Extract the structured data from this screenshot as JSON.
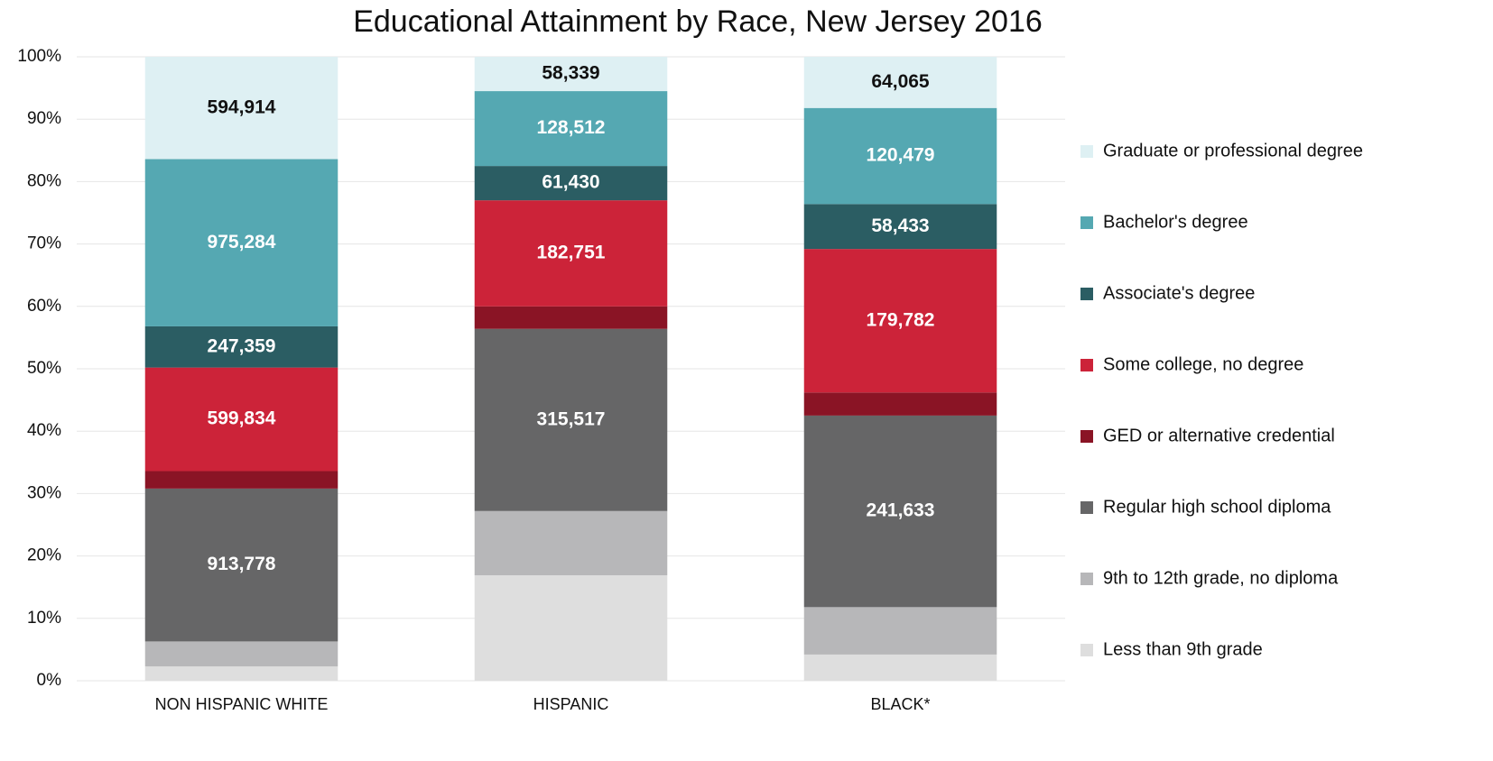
{
  "chart_data": {
    "type": "stacked_bar_percent",
    "title": "Educational Attainment by Race, New Jersey 2016",
    "categories": [
      "NON HISPANIC WHITE",
      "HISPANIC",
      "BLACK*"
    ],
    "ylim": [
      0,
      100
    ],
    "yticks": [
      {
        "value": 0,
        "label": "0%"
      },
      {
        "value": 10,
        "label": "10%"
      },
      {
        "value": 20,
        "label": "20%"
      },
      {
        "value": 30,
        "label": "30%"
      },
      {
        "value": 40,
        "label": "40%"
      },
      {
        "value": 50,
        "label": "50%"
      },
      {
        "value": 60,
        "label": "60%"
      },
      {
        "value": 70,
        "label": "70%"
      },
      {
        "value": 80,
        "label": "80%"
      },
      {
        "value": 90,
        "label": "90%"
      },
      {
        "value": 100,
        "label": "100%"
      }
    ],
    "grid": true,
    "legend": "right",
    "series": [
      {
        "name": "Less than 9th grade",
        "color": "#dedede",
        "label_color": "#ffffff",
        "values": [
          2.3,
          16.9,
          4.2
        ],
        "counts": [
          null,
          null,
          null
        ]
      },
      {
        "name": "9th to 12th grade, no diploma",
        "color": "#b7b7b9",
        "label_color": "#ffffff",
        "values": [
          4.0,
          10.3,
          7.6
        ],
        "counts": [
          null,
          null,
          null
        ]
      },
      {
        "name": "Regular high school diploma",
        "color": "#666667",
        "label_color": "#ffffff",
        "values": [
          24.5,
          29.2,
          30.7
        ],
        "counts": [
          "913,778",
          "315,517",
          "241,633"
        ]
      },
      {
        "name": "GED or alternative credential",
        "color": "#8a1425",
        "label_color": "#ffffff",
        "values": [
          2.8,
          3.6,
          3.7
        ],
        "counts": [
          null,
          null,
          null
        ]
      },
      {
        "name": "Some college, no degree",
        "color": "#cc2339",
        "label_color": "#ffffff",
        "values": [
          16.6,
          17.0,
          23.0
        ],
        "counts": [
          "599,834",
          "182,751",
          "179,782"
        ]
      },
      {
        "name": "Associate's degree",
        "color": "#2b5d63",
        "label_color": "#ffffff",
        "values": [
          6.6,
          5.5,
          7.2
        ],
        "counts": [
          "247,359",
          "61,430",
          "58,433"
        ]
      },
      {
        "name": "Bachelor's degree",
        "color": "#55a8b2",
        "label_color": "#ffffff",
        "values": [
          26.8,
          12.0,
          15.4
        ],
        "counts": [
          "975,284",
          "128,512",
          "120,479"
        ]
      },
      {
        "name": "Graduate or professional degree",
        "color": "#def0f3",
        "label_color": "#111111",
        "values": [
          16.4,
          5.5,
          8.2
        ],
        "counts": [
          "594,914",
          "58,339",
          "64,065"
        ]
      }
    ]
  }
}
